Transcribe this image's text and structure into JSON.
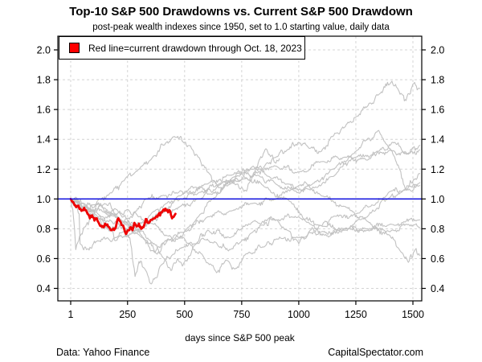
{
  "title": "Top-10 S&P 500 Drawdowns vs. Current S&P 500 Drawdown",
  "subtitle": "post-peak wealth indexes since 1950, set to 1.0 starting value, daily data",
  "legend": {
    "label": "Red line=current drawdown through Oct. 18, 2023",
    "marker_color": "#ff0000"
  },
  "footer": {
    "left": "Data: Yahoo Finance",
    "right": "CapitalSpectator.com"
  },
  "chart_data": {
    "type": "line",
    "title": "Top-10 S&P 500 Drawdowns vs. Current S&P 500 Drawdown",
    "subtitle": "post-peak wealth indexes since 1950, set to 1.0 starting value, daily data",
    "xlabel": "days since S&P 500 peak",
    "ylabel": "",
    "grid": true,
    "legend_position": "top-left",
    "xlim": [
      -55,
      1538
    ],
    "ylim": [
      0.32,
      2.09
    ],
    "xticks": [
      1,
      250,
      500,
      750,
      1000,
      1250,
      1500
    ],
    "yticks": [
      0.4,
      0.6,
      0.8,
      1.0,
      1.2,
      1.4,
      1.6,
      1.8,
      2.0
    ],
    "reference_line": {
      "y": 1.0,
      "color": "#0000dd"
    },
    "colors": {
      "historical": "#c2c2c2",
      "current": "#ee0000",
      "grid": "#d4d4d4"
    },
    "series": [
      {
        "name": "top10-drawdown-1",
        "points": [
          [
            1,
            1.0
          ],
          [
            40,
            0.95
          ],
          [
            100,
            0.92
          ],
          [
            150,
            0.97
          ],
          [
            200,
            0.93
          ],
          [
            250,
            0.86
          ],
          [
            290,
            0.785
          ],
          [
            330,
            0.83
          ],
          [
            400,
            0.9
          ],
          [
            480,
            0.95
          ],
          [
            560,
            1.0
          ],
          [
            650,
            1.09
          ],
          [
            720,
            1.15
          ],
          [
            800,
            1.22
          ],
          [
            870,
            1.15
          ],
          [
            950,
            1.1
          ],
          [
            1050,
            1.06
          ],
          [
            1150,
            1.15
          ],
          [
            1250,
            1.32
          ],
          [
            1350,
            1.46
          ],
          [
            1420,
            1.28
          ],
          [
            1470,
            1.06
          ],
          [
            1500,
            1.12
          ],
          [
            1530,
            1.17
          ]
        ]
      },
      {
        "name": "top10-drawdown-2",
        "points": [
          [
            1,
            1.0
          ],
          [
            60,
            0.97
          ],
          [
            120,
            0.9
          ],
          [
            180,
            0.8
          ],
          [
            196,
            0.72
          ],
          [
            230,
            0.78
          ],
          [
            280,
            0.82
          ],
          [
            360,
            0.91
          ],
          [
            420,
            0.97
          ],
          [
            480,
            1.02
          ],
          [
            600,
            1.1
          ],
          [
            700,
            1.16
          ],
          [
            800,
            1.2
          ],
          [
            900,
            1.22
          ],
          [
            1000,
            1.18
          ],
          [
            1100,
            1.25
          ],
          [
            1200,
            1.28
          ],
          [
            1300,
            1.26
          ],
          [
            1400,
            1.33
          ],
          [
            1480,
            1.3
          ],
          [
            1530,
            1.33
          ]
        ]
      },
      {
        "name": "top10-drawdown-3",
        "points": [
          [
            1,
            1.0
          ],
          [
            50,
            0.95
          ],
          [
            110,
            0.88
          ],
          [
            170,
            0.785
          ],
          [
            230,
            0.84
          ],
          [
            290,
            0.92
          ],
          [
            330,
            1.0
          ],
          [
            400,
            1.02
          ],
          [
            470,
            1.04
          ],
          [
            550,
            1.08
          ],
          [
            620,
            1.03
          ],
          [
            700,
            1.1
          ],
          [
            760,
            1.15
          ],
          [
            850,
            1.08
          ],
          [
            950,
            1.0
          ],
          [
            1050,
            0.83
          ],
          [
            1130,
            0.745
          ],
          [
            1200,
            0.8
          ],
          [
            1300,
            0.88
          ],
          [
            1400,
            1.05
          ],
          [
            1480,
            1.06
          ],
          [
            1530,
            1.09
          ]
        ]
      },
      {
        "name": "top10-drawdown-4",
        "points": [
          [
            1,
            1.0
          ],
          [
            80,
            0.94
          ],
          [
            150,
            0.91
          ],
          [
            230,
            0.85
          ],
          [
            300,
            0.76
          ],
          [
            370,
            0.64
          ],
          [
            400,
            0.7
          ],
          [
            500,
            0.78
          ],
          [
            600,
            0.88
          ],
          [
            700,
            0.92
          ],
          [
            800,
            0.97
          ],
          [
            900,
            1.0
          ],
          [
            1000,
            1.09
          ],
          [
            1030,
            1.11
          ],
          [
            1100,
            1.02
          ],
          [
            1200,
            0.95
          ],
          [
            1300,
            0.85
          ],
          [
            1380,
            0.78
          ],
          [
            1450,
            0.64
          ],
          [
            1480,
            0.575
          ],
          [
            1510,
            0.66
          ],
          [
            1530,
            0.62
          ]
        ]
      },
      {
        "name": "top10-drawdown-5",
        "points": [
          [
            1,
            1.0
          ],
          [
            60,
            0.93
          ],
          [
            120,
            0.87
          ],
          [
            200,
            0.88
          ],
          [
            280,
            0.81
          ],
          [
            350,
            0.72
          ],
          [
            420,
            0.58
          ],
          [
            440,
            0.52
          ],
          [
            470,
            0.6
          ],
          [
            490,
            0.55
          ],
          [
            550,
            0.7
          ],
          [
            600,
            0.79
          ],
          [
            700,
            0.74
          ],
          [
            800,
            0.85
          ],
          [
            900,
            0.86
          ],
          [
            1000,
            0.88
          ],
          [
            1100,
            0.82
          ],
          [
            1200,
            0.8
          ],
          [
            1300,
            0.79
          ],
          [
            1400,
            0.78
          ],
          [
            1480,
            0.83
          ],
          [
            1530,
            0.81
          ]
        ]
      },
      {
        "name": "top10-drawdown-6",
        "points": [
          [
            1,
            1.0
          ],
          [
            50,
            0.93
          ],
          [
            100,
            0.96
          ],
          [
            150,
            0.94
          ],
          [
            200,
            0.89
          ],
          [
            250,
            0.93
          ],
          [
            300,
            0.88
          ],
          [
            350,
            0.84
          ],
          [
            430,
            0.75
          ],
          [
            470,
            0.73
          ],
          [
            500,
            0.78
          ],
          [
            560,
            0.88
          ],
          [
            620,
            1.0
          ],
          [
            700,
            1.12
          ],
          [
            750,
            1.18
          ],
          [
            800,
            1.15
          ],
          [
            850,
            1.22
          ],
          [
            900,
            1.28
          ],
          [
            950,
            1.33
          ],
          [
            1000,
            1.38
          ],
          [
            1050,
            1.34
          ],
          [
            1100,
            1.32
          ],
          [
            1150,
            1.42
          ],
          [
            1200,
            1.48
          ],
          [
            1250,
            1.55
          ],
          [
            1300,
            1.62
          ],
          [
            1350,
            1.7
          ],
          [
            1408,
            1.79
          ],
          [
            1440,
            1.72
          ],
          [
            1470,
            1.66
          ],
          [
            1500,
            1.77
          ],
          [
            1530,
            1.74
          ]
        ]
      },
      {
        "name": "top10-drawdown-7",
        "points": [
          [
            1,
            1.0
          ],
          [
            30,
            0.94
          ],
          [
            38,
            0.9
          ],
          [
            42,
            0.7
          ],
          [
            70,
            0.66
          ],
          [
            120,
            0.72
          ],
          [
            200,
            0.74
          ],
          [
            300,
            0.8
          ],
          [
            400,
            0.92
          ],
          [
            480,
            1.0
          ],
          [
            560,
            1.04
          ],
          [
            650,
            1.1
          ],
          [
            750,
            1.13
          ],
          [
            820,
            1.16
          ],
          [
            900,
            1.1
          ],
          [
            1000,
            1.04
          ],
          [
            1060,
            1.1
          ],
          [
            1150,
            1.2
          ],
          [
            1250,
            1.28
          ],
          [
            1350,
            1.32
          ],
          [
            1420,
            1.38
          ],
          [
            1470,
            1.3
          ],
          [
            1530,
            1.36
          ]
        ]
      },
      {
        "name": "top10-drawdown-8",
        "points": [
          [
            1,
            1.0
          ],
          [
            60,
            0.95
          ],
          [
            120,
            0.97
          ],
          [
            180,
            0.9
          ],
          [
            260,
            0.82
          ],
          [
            320,
            0.74
          ],
          [
            380,
            0.63
          ],
          [
            420,
            0.71
          ],
          [
            460,
            0.76
          ],
          [
            520,
            0.7
          ],
          [
            580,
            0.62
          ],
          [
            640,
            0.505
          ],
          [
            680,
            0.59
          ],
          [
            720,
            0.53
          ],
          [
            780,
            0.64
          ],
          [
            850,
            0.68
          ],
          [
            900,
            0.73
          ],
          [
            1000,
            0.74
          ],
          [
            1100,
            0.78
          ],
          [
            1200,
            0.79
          ],
          [
            1300,
            0.8
          ],
          [
            1400,
            0.83
          ],
          [
            1530,
            0.86
          ]
        ]
      },
      {
        "name": "top10-drawdown-9",
        "points": [
          [
            1,
            1.0
          ],
          [
            60,
            0.94
          ],
          [
            120,
            0.88
          ],
          [
            180,
            0.85
          ],
          [
            230,
            0.81
          ],
          [
            260,
            0.74
          ],
          [
            283,
            0.48
          ],
          [
            300,
            0.58
          ],
          [
            330,
            0.52
          ],
          [
            355,
            0.43
          ],
          [
            400,
            0.56
          ],
          [
            450,
            0.63
          ],
          [
            480,
            0.67
          ],
          [
            550,
            0.7
          ],
          [
            600,
            0.73
          ],
          [
            650,
            0.68
          ],
          [
            700,
            0.66
          ],
          [
            750,
            0.72
          ],
          [
            800,
            0.78
          ],
          [
            850,
            0.83
          ],
          [
            890,
            0.87
          ],
          [
            950,
            0.79
          ],
          [
            1000,
            0.7
          ],
          [
            1050,
            0.79
          ],
          [
            1100,
            0.82
          ],
          [
            1150,
            0.88
          ],
          [
            1250,
            0.9
          ],
          [
            1320,
            0.96
          ],
          [
            1390,
            1.0
          ],
          [
            1450,
            1.05
          ],
          [
            1530,
            1.11
          ]
        ]
      },
      {
        "name": "top10-drawdown-10",
        "points": [
          [
            1,
            1.0
          ],
          [
            10,
            0.93
          ],
          [
            18,
            0.8
          ],
          [
            23,
            0.66
          ],
          [
            40,
            0.75
          ],
          [
            70,
            0.83
          ],
          [
            100,
            0.89
          ],
          [
            126,
            1.0
          ],
          [
            180,
            1.04
          ],
          [
            230,
            1.12
          ],
          [
            300,
            1.2
          ],
          [
            360,
            1.28
          ],
          [
            420,
            1.38
          ],
          [
            470,
            1.42
          ],
          [
            500,
            1.38
          ],
          [
            530,
            1.34
          ],
          [
            560,
            1.28
          ],
          [
            600,
            1.18
          ],
          [
            640,
            1.1
          ],
          [
            665,
            1.06
          ],
          [
            700,
            1.13
          ],
          [
            730,
            1.1
          ],
          [
            760,
            1.05
          ],
          [
            790,
            1.12
          ],
          [
            830,
            1.27
          ],
          [
            852,
            1.33
          ],
          [
            880,
            1.29
          ],
          [
            900,
            1.24
          ],
          [
            915,
            1.27
          ]
        ]
      }
    ],
    "current": {
      "name": "current-drawdown",
      "points": [
        [
          1,
          1.0
        ],
        [
          15,
          0.97
        ],
        [
          25,
          0.945
        ],
        [
          35,
          0.955
        ],
        [
          48,
          0.92
        ],
        [
          60,
          0.94
        ],
        [
          75,
          0.9
        ],
        [
          85,
          0.87
        ],
        [
          95,
          0.89
        ],
        [
          105,
          0.855
        ],
        [
          115,
          0.87
        ],
        [
          130,
          0.82
        ],
        [
          145,
          0.81
        ],
        [
          155,
          0.83
        ],
        [
          165,
          0.815
        ],
        [
          180,
          0.79
        ],
        [
          195,
          0.8
        ],
        [
          210,
          0.87
        ],
        [
          220,
          0.845
        ],
        [
          235,
          0.8
        ],
        [
          243,
          0.765
        ],
        [
          255,
          0.79
        ],
        [
          265,
          0.81
        ],
        [
          272,
          0.79
        ],
        [
          280,
          0.84
        ],
        [
          290,
          0.815
        ],
        [
          300,
          0.835
        ],
        [
          310,
          0.8
        ],
        [
          320,
          0.81
        ],
        [
          330,
          0.865
        ],
        [
          340,
          0.84
        ],
        [
          355,
          0.86
        ],
        [
          370,
          0.87
        ],
        [
          385,
          0.895
        ],
        [
          400,
          0.91
        ],
        [
          415,
          0.935
        ],
        [
          428,
          0.91
        ],
        [
          433,
          0.925
        ],
        [
          445,
          0.87
        ],
        [
          452,
          0.88
        ],
        [
          460,
          0.9
        ]
      ]
    }
  }
}
